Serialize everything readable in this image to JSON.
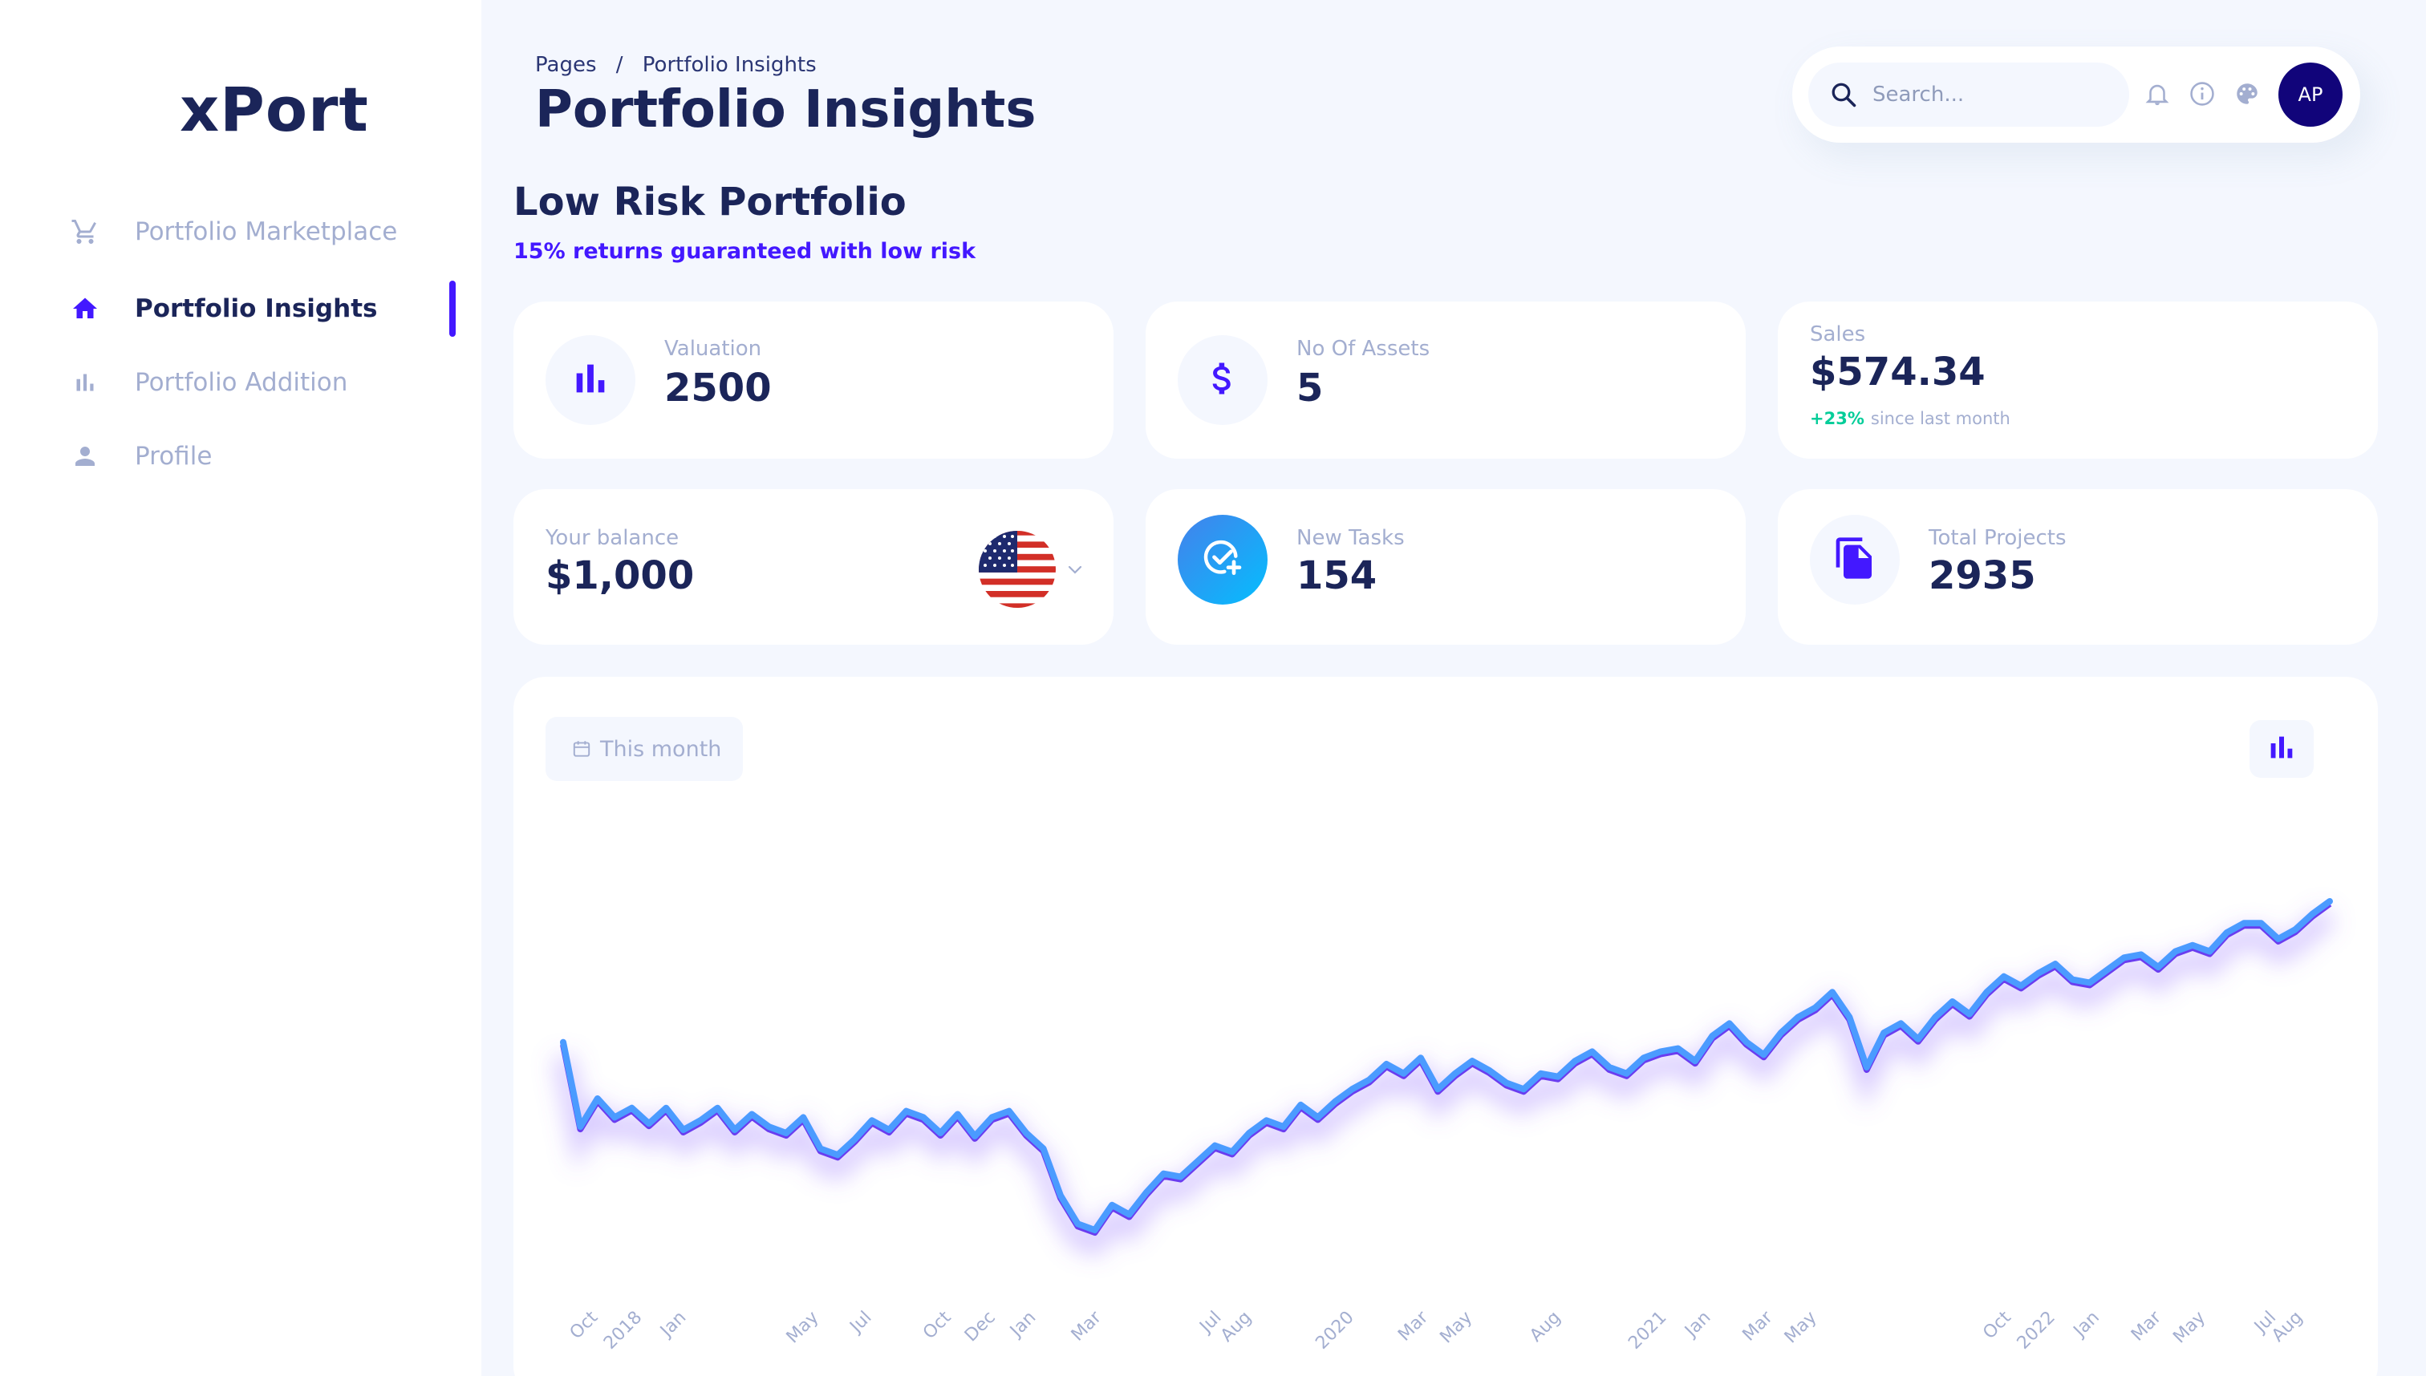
{
  "app": {
    "logo": "xPort"
  },
  "sidebar": {
    "items": [
      {
        "label": "Portfolio Marketplace",
        "icon": "cart-icon",
        "active": false
      },
      {
        "label": "Portfolio Insights",
        "icon": "home-icon",
        "active": true
      },
      {
        "label": "Portfolio Addition",
        "icon": "bar-chart-icon",
        "active": false
      },
      {
        "label": "Profile",
        "icon": "person-icon",
        "active": false
      }
    ]
  },
  "header": {
    "breadcrumb": {
      "root": "Pages",
      "separator": "/",
      "current": "Portfolio Insights"
    },
    "title": "Portfolio Insights",
    "search_placeholder": "Search...",
    "avatar_initials": "AP"
  },
  "portfolio": {
    "title": "Low Risk Portfolio",
    "subtitle": "15% returns guaranteed with low risk"
  },
  "stats": {
    "valuation": {
      "label": "Valuation",
      "value": "2500"
    },
    "assets": {
      "label": "No Of Assets",
      "value": "5"
    },
    "sales": {
      "label": "Sales",
      "value": "$574.34",
      "growth": "+23%",
      "growth_note": "since last month"
    },
    "balance": {
      "label": "Your balance",
      "value": "$1,000"
    },
    "tasks": {
      "label": "New Tasks",
      "value": "154"
    },
    "projects": {
      "label": "Total Projects",
      "value": "2935"
    }
  },
  "chart_controls": {
    "range_label": "This month"
  },
  "colors": {
    "accent": "#4318ff",
    "navy": "#1b2559",
    "muted": "#a3aed0",
    "line": "#4b9bff",
    "positive": "#05cd99",
    "avatar_bg": "#11047a"
  },
  "chart_data": {
    "type": "line",
    "title": "",
    "xlabel": "",
    "ylabel": "",
    "x_tick_labels": [
      "Oct",
      "2018",
      "Jan",
      "May",
      "Jul",
      "Oct",
      "Dec",
      "Jan",
      "Mar",
      "Jul",
      "Aug",
      "2020",
      "Mar",
      "May",
      "Aug",
      "2021",
      "Jan",
      "Mar",
      "May",
      "Oct",
      "2022",
      "Jan",
      "Mar",
      "May",
      "Jul",
      "Aug"
    ],
    "grid": false,
    "legend": "none",
    "series": [
      {
        "values": [
          100,
          73,
          82,
          76,
          79,
          74,
          79,
          72,
          75,
          79,
          72,
          77,
          73,
          71,
          76,
          66,
          64,
          69,
          75,
          72,
          78,
          76,
          71,
          77,
          70,
          76,
          78,
          71,
          66,
          51,
          42,
          40,
          48,
          45,
          52,
          58,
          57,
          62,
          67,
          65,
          71,
          75,
          73,
          80,
          76,
          81,
          85,
          88,
          93,
          90,
          95,
          85,
          90,
          94,
          91,
          87,
          85,
          90,
          89,
          94,
          97,
          92,
          90,
          95,
          97,
          98,
          94,
          102,
          106,
          100,
          96,
          103,
          108,
          111,
          116,
          108,
          92,
          103,
          106,
          101,
          108,
          113,
          109,
          116,
          121,
          118,
          122,
          125,
          120,
          119,
          123,
          127,
          128,
          124,
          129,
          131,
          129,
          135,
          138,
          138,
          133,
          136,
          141,
          145
        ]
      }
    ]
  }
}
